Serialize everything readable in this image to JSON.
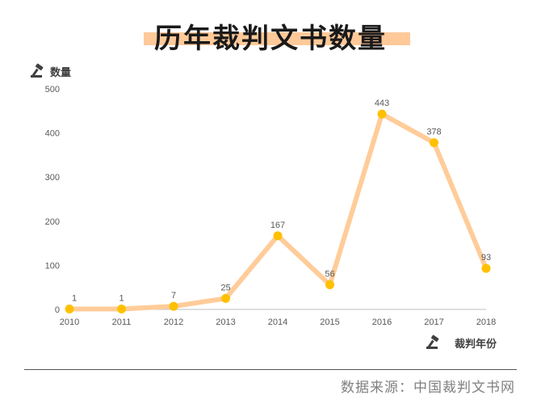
{
  "title": "历年裁判文书数量",
  "source": "数据来源：中国裁判文书网",
  "colors": {
    "line": "#ffcc99",
    "point": "#ffc000",
    "title_highlight": "#ffc999",
    "icon": "#404040"
  },
  "icons": {
    "y_axis_icon": "gavel-icon",
    "x_axis_icon": "gavel-icon"
  },
  "chart_data": {
    "type": "line",
    "title": "历年裁判文书数量",
    "ylabel": "数量",
    "xlabel": "裁判年份",
    "categories": [
      "2010",
      "2011",
      "2012",
      "2013",
      "2014",
      "2015",
      "2016",
      "2017",
      "2018"
    ],
    "values": [
      1,
      1,
      7,
      25,
      167,
      56,
      443,
      378,
      93
    ],
    "data_labels": [
      "1",
      "1",
      "7",
      "25",
      "167",
      "56",
      "443",
      "378",
      "93"
    ],
    "ylim": [
      0,
      500
    ],
    "yticks": [
      "0",
      "100",
      "200",
      "300",
      "400",
      "500"
    ],
    "grid": false,
    "legend": "none"
  }
}
